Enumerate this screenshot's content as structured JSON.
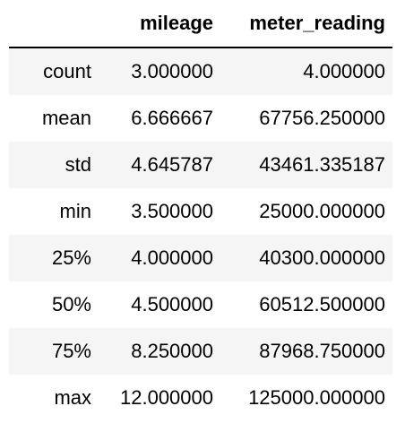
{
  "table": {
    "columns": {
      "index": "",
      "mileage": "mileage",
      "meter_reading": "meter_reading"
    },
    "rows": [
      {
        "label": "count",
        "mileage": "3.000000",
        "meter_reading": "4.000000"
      },
      {
        "label": "mean",
        "mileage": "6.666667",
        "meter_reading": "67756.250000"
      },
      {
        "label": "std",
        "mileage": "4.645787",
        "meter_reading": "43461.335187"
      },
      {
        "label": "min",
        "mileage": "3.500000",
        "meter_reading": "25000.000000"
      },
      {
        "label": "25%",
        "mileage": "4.000000",
        "meter_reading": "40300.000000"
      },
      {
        "label": "50%",
        "mileage": "4.500000",
        "meter_reading": "60512.500000"
      },
      {
        "label": "75%",
        "mileage": "8.250000",
        "meter_reading": "87968.750000"
      },
      {
        "label": "max",
        "mileage": "12.000000",
        "meter_reading": "125000.000000"
      }
    ]
  },
  "colors": {
    "stripe": "#f5f5f5",
    "header_rule": "#000000"
  }
}
